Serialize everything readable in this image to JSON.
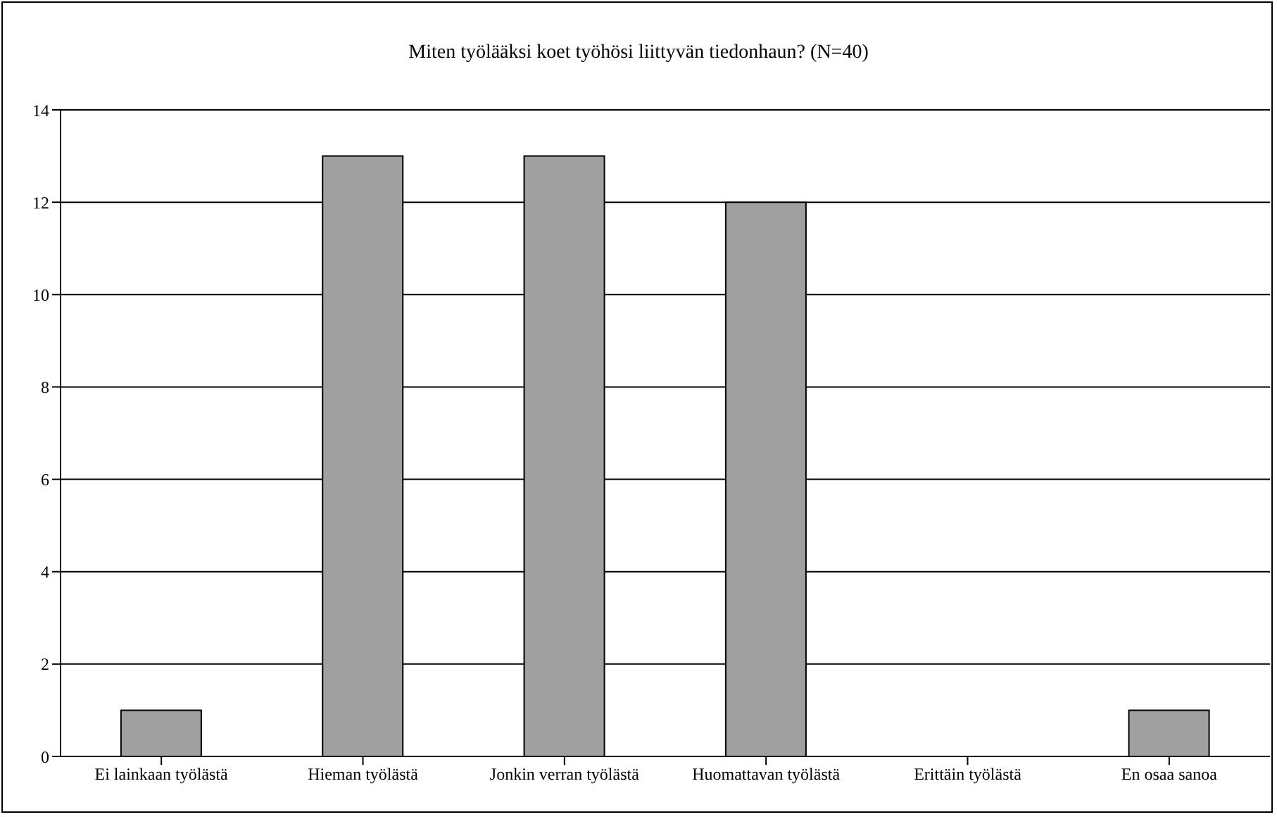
{
  "chart_data": {
    "type": "bar",
    "title": "Miten työlääksi koet työhösi liittyvän tiedonhaun? (N=40)",
    "categories": [
      "Ei lainkaan työlästä",
      "Hieman työlästä",
      "Jonkin verran työlästä",
      "Huomattavan työlästä",
      "Erittäin työlästä",
      "En osaa sanoa"
    ],
    "values": [
      1,
      13,
      13,
      12,
      0,
      1
    ],
    "color": "#a0a0a0",
    "ylim": [
      0,
      14
    ],
    "yticks": [
      0,
      2,
      4,
      6,
      8,
      10,
      12,
      14
    ],
    "grid": "y",
    "legend": false
  }
}
